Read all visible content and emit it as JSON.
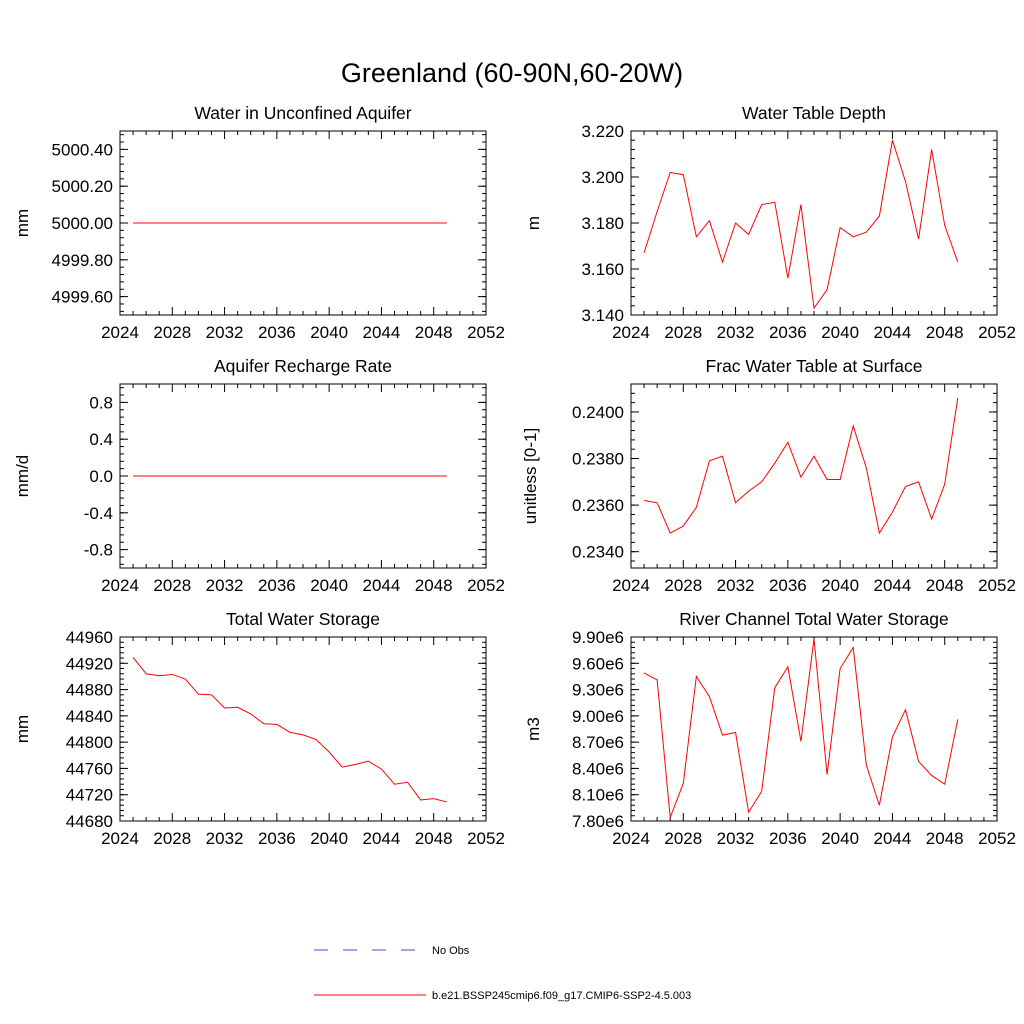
{
  "page_title": "Greenland (60-90N,60-20W)",
  "legend": {
    "obs_label": "No Obs",
    "obs_color": "#4a4ad0",
    "model_label": "b.e21.BSSP245cmip6.f09_g17.CMIP6-SSP2-4.5.003",
    "model_color": "#ff0000"
  },
  "chart_data": [
    {
      "type": "line",
      "title": "Water in Unconfined Aquifer",
      "xlabel": "",
      "ylabel": "mm",
      "xlim": [
        2024,
        2052
      ],
      "ylim": [
        4999.5,
        5000.5
      ],
      "x_ticks": [
        "2024",
        "2028",
        "2032",
        "2036",
        "2040",
        "2044",
        "2048",
        "2052"
      ],
      "y_ticks": [
        {
          "value": 4999.6,
          "label": "4999.60"
        },
        {
          "value": 4999.8,
          "label": "4999.80"
        },
        {
          "value": 5000.0,
          "label": "5000.00"
        },
        {
          "value": 5000.2,
          "label": "5000.20"
        },
        {
          "value": 5000.4,
          "label": "5000.40"
        }
      ],
      "y_minor_step": 0.04,
      "series": [
        {
          "name": "b.e21.BSSP245cmip6.f09_g17.CMIP6-SSP2-4.5.003",
          "x": [
            2025,
            2026,
            2027,
            2028,
            2029,
            2030,
            2031,
            2032,
            2033,
            2034,
            2035,
            2036,
            2037,
            2038,
            2039,
            2040,
            2041,
            2042,
            2043,
            2044,
            2045,
            2046,
            2047,
            2048,
            2049
          ],
          "values": [
            5000,
            5000,
            5000,
            5000,
            5000,
            5000,
            5000,
            5000,
            5000,
            5000,
            5000,
            5000,
            5000,
            5000,
            5000,
            5000,
            5000,
            5000,
            5000,
            5000,
            5000,
            5000,
            5000,
            5000,
            5000
          ]
        }
      ]
    },
    {
      "type": "line",
      "title": "Water Table Depth",
      "xlabel": "",
      "ylabel": "m",
      "xlim": [
        2024,
        2052
      ],
      "ylim": [
        3.14,
        3.22
      ],
      "x_ticks": [
        "2024",
        "2028",
        "2032",
        "2036",
        "2040",
        "2044",
        "2048",
        "2052"
      ],
      "y_ticks": [
        {
          "value": 3.14,
          "label": "3.140"
        },
        {
          "value": 3.16,
          "label": "3.160"
        },
        {
          "value": 3.18,
          "label": "3.180"
        },
        {
          "value": 3.2,
          "label": "3.200"
        },
        {
          "value": 3.22,
          "label": "3.220"
        }
      ],
      "y_minor_step": 0.004,
      "series": [
        {
          "name": "b.e21.BSSP245cmip6.f09_g17.CMIP6-SSP2-4.5.003",
          "x": [
            2025,
            2026,
            2027,
            2028,
            2029,
            2030,
            2031,
            2032,
            2033,
            2034,
            2035,
            2036,
            2037,
            2038,
            2039,
            2040,
            2041,
            2042,
            2043,
            2044,
            2045,
            2046,
            2047,
            2048,
            2049
          ],
          "values": [
            3.167,
            3.185,
            3.202,
            3.201,
            3.174,
            3.181,
            3.163,
            3.18,
            3.175,
            3.188,
            3.189,
            3.156,
            3.188,
            3.143,
            3.151,
            3.178,
            3.174,
            3.176,
            3.183,
            3.216,
            3.198,
            3.173,
            3.212,
            3.179,
            3.163
          ]
        }
      ]
    },
    {
      "type": "line",
      "title": "Aquifer Recharge Rate",
      "xlabel": "",
      "ylabel": "mm/d",
      "xlim": [
        2024,
        2052
      ],
      "ylim": [
        -1.0,
        1.0
      ],
      "x_ticks": [
        "2024",
        "2028",
        "2032",
        "2036",
        "2040",
        "2044",
        "2048",
        "2052"
      ],
      "y_ticks": [
        {
          "value": -0.8,
          "label": "-0.8"
        },
        {
          "value": -0.4,
          "label": "-0.4"
        },
        {
          "value": 0.0,
          "label": "0.0"
        },
        {
          "value": 0.4,
          "label": "0.4"
        },
        {
          "value": 0.8,
          "label": "0.8"
        }
      ],
      "y_minor_step": 0.08,
      "series": [
        {
          "name": "b.e21.BSSP245cmip6.f09_g17.CMIP6-SSP2-4.5.003",
          "x": [
            2025,
            2026,
            2027,
            2028,
            2029,
            2030,
            2031,
            2032,
            2033,
            2034,
            2035,
            2036,
            2037,
            2038,
            2039,
            2040,
            2041,
            2042,
            2043,
            2044,
            2045,
            2046,
            2047,
            2048,
            2049
          ],
          "values": [
            0,
            0,
            0,
            0,
            0,
            0,
            0,
            0,
            0,
            0,
            0,
            0,
            0,
            0,
            0,
            0,
            0,
            0,
            0,
            0,
            0,
            0,
            0,
            0,
            0
          ]
        }
      ]
    },
    {
      "type": "line",
      "title": "Frac Water Table at Surface",
      "xlabel": "",
      "ylabel": "unitless [0-1]",
      "xlim": [
        2024,
        2052
      ],
      "ylim": [
        0.2333,
        0.2412
      ],
      "x_ticks": [
        "2024",
        "2028",
        "2032",
        "2036",
        "2040",
        "2044",
        "2048",
        "2052"
      ],
      "y_ticks": [
        {
          "value": 0.234,
          "label": "0.2340"
        },
        {
          "value": 0.236,
          "label": "0.2360"
        },
        {
          "value": 0.238,
          "label": "0.2380"
        },
        {
          "value": 0.24,
          "label": "0.2400"
        }
      ],
      "y_minor_step": 0.0004,
      "series": [
        {
          "name": "b.e21.BSSP245cmip6.f09_g17.CMIP6-SSP2-4.5.003",
          "x": [
            2025,
            2026,
            2027,
            2028,
            2029,
            2030,
            2031,
            2032,
            2033,
            2034,
            2035,
            2036,
            2037,
            2038,
            2039,
            2040,
            2041,
            2042,
            2043,
            2044,
            2045,
            2046,
            2047,
            2048,
            2049
          ],
          "values": [
            0.2362,
            0.2361,
            0.2348,
            0.2351,
            0.2359,
            0.2379,
            0.2381,
            0.2361,
            0.2366,
            0.237,
            0.2378,
            0.2387,
            0.2372,
            0.2381,
            0.2371,
            0.2371,
            0.2394,
            0.2376,
            0.2348,
            0.2357,
            0.2368,
            0.237,
            0.2354,
            0.2369,
            0.2406
          ]
        }
      ]
    },
    {
      "type": "line",
      "title": "Total Water Storage",
      "xlabel": "",
      "ylabel": "mm",
      "xlim": [
        2024,
        2052
      ],
      "ylim": [
        44680,
        44960
      ],
      "x_ticks": [
        "2024",
        "2028",
        "2032",
        "2036",
        "2040",
        "2044",
        "2048",
        "2052"
      ],
      "y_ticks": [
        {
          "value": 44680,
          "label": "44680"
        },
        {
          "value": 44720,
          "label": "44720"
        },
        {
          "value": 44760,
          "label": "44760"
        },
        {
          "value": 44800,
          "label": "44800"
        },
        {
          "value": 44840,
          "label": "44840"
        },
        {
          "value": 44880,
          "label": "44880"
        },
        {
          "value": 44920,
          "label": "44920"
        },
        {
          "value": 44960,
          "label": "44960"
        }
      ],
      "y_minor_step": 8,
      "series": [
        {
          "name": "b.e21.BSSP245cmip6.f09_g17.CMIP6-SSP2-4.5.003",
          "x": [
            2025,
            2026,
            2027,
            2028,
            2029,
            2030,
            2031,
            2032,
            2033,
            2034,
            2035,
            2036,
            2037,
            2038,
            2039,
            2040,
            2041,
            2042,
            2043,
            2044,
            2045,
            2046,
            2047,
            2048,
            2049
          ],
          "values": [
            44929,
            44904,
            44901,
            44903,
            44896,
            44873,
            44872,
            44852,
            44853,
            44843,
            44828,
            44827,
            44815,
            44811,
            44804,
            44785,
            44762,
            44766,
            44771,
            44759,
            44736,
            44739,
            44712,
            44714,
            44709
          ]
        }
      ]
    },
    {
      "type": "line",
      "title": "River Channel Total Water Storage",
      "xlabel": "",
      "ylabel": "m3",
      "xlim": [
        2024,
        2052
      ],
      "ylim": [
        7800000.0,
        9900000.0
      ],
      "x_ticks": [
        "2024",
        "2028",
        "2032",
        "2036",
        "2040",
        "2044",
        "2048",
        "2052"
      ],
      "y_ticks": [
        {
          "value": 7800000.0,
          "label": "7.80e6"
        },
        {
          "value": 8100000.0,
          "label": "8.10e6"
        },
        {
          "value": 8400000.0,
          "label": "8.40e6"
        },
        {
          "value": 8700000.0,
          "label": "8.70e6"
        },
        {
          "value": 9000000.0,
          "label": "9.00e6"
        },
        {
          "value": 9300000.0,
          "label": "9.30e6"
        },
        {
          "value": 9600000.0,
          "label": "9.60e6"
        },
        {
          "value": 9900000.0,
          "label": "9.90e6"
        }
      ],
      "y_minor_step": 60000,
      "series": [
        {
          "name": "b.e21.BSSP245cmip6.f09_g17.CMIP6-SSP2-4.5.003",
          "x": [
            2025,
            2026,
            2027,
            2028,
            2029,
            2030,
            2031,
            2032,
            2033,
            2034,
            2035,
            2036,
            2037,
            2038,
            2039,
            2040,
            2041,
            2042,
            2043,
            2044,
            2045,
            2046,
            2047,
            2048,
            2049
          ],
          "values": [
            9490000.0,
            9410000.0,
            7840000.0,
            8230000.0,
            9450000.0,
            9220000.0,
            8780000.0,
            8810000.0,
            7900000.0,
            8140000.0,
            9320000.0,
            9560000.0,
            8710000.0,
            9880000.0,
            8330000.0,
            9540000.0,
            9780000.0,
            8440000.0,
            7980000.0,
            8760000.0,
            9070000.0,
            8480000.0,
            8320000.0,
            8220000.0,
            8960000.0
          ]
        }
      ]
    }
  ]
}
